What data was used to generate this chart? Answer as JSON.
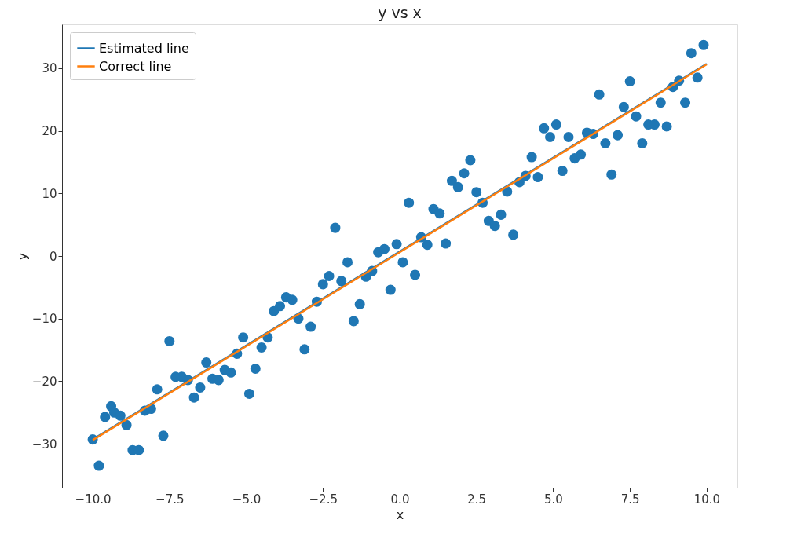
{
  "chart_data": {
    "type": "scatter",
    "title": "y vs x",
    "xlabel": "x",
    "ylabel": "y",
    "xlim": [
      -11,
      11
    ],
    "ylim": [
      -37,
      37
    ],
    "xticks": [
      {
        "value": -10,
        "label": "−10.0"
      },
      {
        "value": -7.5,
        "label": "−7.5"
      },
      {
        "value": -5,
        "label": "−5.0"
      },
      {
        "value": -2.5,
        "label": "−2.5"
      },
      {
        "value": 0,
        "label": "0.0"
      },
      {
        "value": 2.5,
        "label": "2.5"
      },
      {
        "value": 5,
        "label": "5.0"
      },
      {
        "value": 7.5,
        "label": "7.5"
      },
      {
        "value": 10,
        "label": "10.0"
      }
    ],
    "yticks": [
      {
        "value": -30,
        "label": "−30"
      },
      {
        "value": -20,
        "label": "−20"
      },
      {
        "value": -10,
        "label": "−10"
      },
      0,
      10,
      20,
      30
    ],
    "grid": false,
    "legend": "top left",
    "series": [
      {
        "type": "line",
        "name": "Estimated line",
        "color": "#1f77b4",
        "marker": "none",
        "line_style": "solid",
        "x": [
          -10,
          10
        ],
        "values": [
          -29.3,
          30.7
        ]
      },
      {
        "type": "line",
        "name": "Correct line",
        "color": "#ff7f0e",
        "marker": "none",
        "line_style": "solid",
        "x": [
          -10,
          10
        ],
        "values": [
          -29.4,
          30.6
        ]
      },
      {
        "type": "scatter",
        "color": "#1f77b4",
        "marker": "circle",
        "x": [
          -10,
          -9.8,
          -9.6,
          -9.4,
          -9.3,
          -9.1,
          -8.9,
          -8.7,
          -8.5,
          -8.3,
          -8.1,
          -7.9,
          -7.7,
          -7.5,
          -7.3,
          -7.1,
          -6.9,
          -6.7,
          -6.5,
          -6.3,
          -6.1,
          -5.9,
          -5.7,
          -5.5,
          -5.3,
          -5.1,
          -4.9,
          -4.7,
          -4.5,
          -4.3,
          -4.1,
          -3.9,
          -3.7,
          -3.5,
          -3.3,
          -3.1,
          -2.9,
          -2.7,
          -2.5,
          -2.3,
          -2.1,
          -1.9,
          -1.7,
          -1.5,
          -1.3,
          -1.1,
          -0.9,
          -0.7,
          -0.5,
          -0.3,
          -0.1,
          0.1,
          0.3,
          0.5,
          0.7,
          0.9,
          1.1,
          1.3,
          1.5,
          1.7,
          1.9,
          2.1,
          2.3,
          2.5,
          2.7,
          2.9,
          3.1,
          3.3,
          3.5,
          3.7,
          3.9,
          4.1,
          4.3,
          4.5,
          4.7,
          4.9,
          5.1,
          5.3,
          5.5,
          5.7,
          5.9,
          6.1,
          6.3,
          6.5,
          6.7,
          6.9,
          7.1,
          7.3,
          7.5,
          7.7,
          7.9,
          8.1,
          8.3,
          8.5,
          8.7,
          8.9,
          9.1,
          9.3,
          9.5,
          9.7,
          9.9
        ],
        "values": [
          -29.3,
          -33.5,
          -25.7,
          -24,
          -25,
          -25.5,
          -27,
          -31,
          -31,
          -24.7,
          -24.4,
          -21.3,
          -28.7,
          -13.6,
          -19.3,
          -19.3,
          -19.8,
          -22.6,
          -21,
          -17,
          -19.6,
          -19.8,
          -18.2,
          -18.6,
          -15.6,
          -13,
          -22,
          -18,
          -14.6,
          -13,
          -8.8,
          -8,
          -6.6,
          -7,
          -10,
          -14.9,
          -11.3,
          -7.3,
          -4.5,
          -3.2,
          4.5,
          -4,
          -1,
          -10.4,
          -7.7,
          -3.3,
          -2.4,
          0.6,
          1.1,
          -5.4,
          1.9,
          -1,
          8.5,
          -3,
          3,
          1.8,
          7.5,
          6.8,
          2,
          12,
          11,
          13.2,
          15.3,
          10.2,
          8.5,
          5.6,
          4.8,
          6.6,
          10.3,
          3.4,
          11.8,
          12.8,
          15.8,
          12.6,
          20.4,
          19,
          21,
          13.6,
          19,
          15.6,
          16.2,
          19.7,
          19.5,
          25.8,
          18,
          13,
          19.3,
          23.8,
          27.9,
          22.3,
          18,
          21,
          21,
          24.5,
          20.7,
          27,
          28,
          24.5,
          32.4,
          28.5,
          33.7
        ]
      }
    ]
  }
}
